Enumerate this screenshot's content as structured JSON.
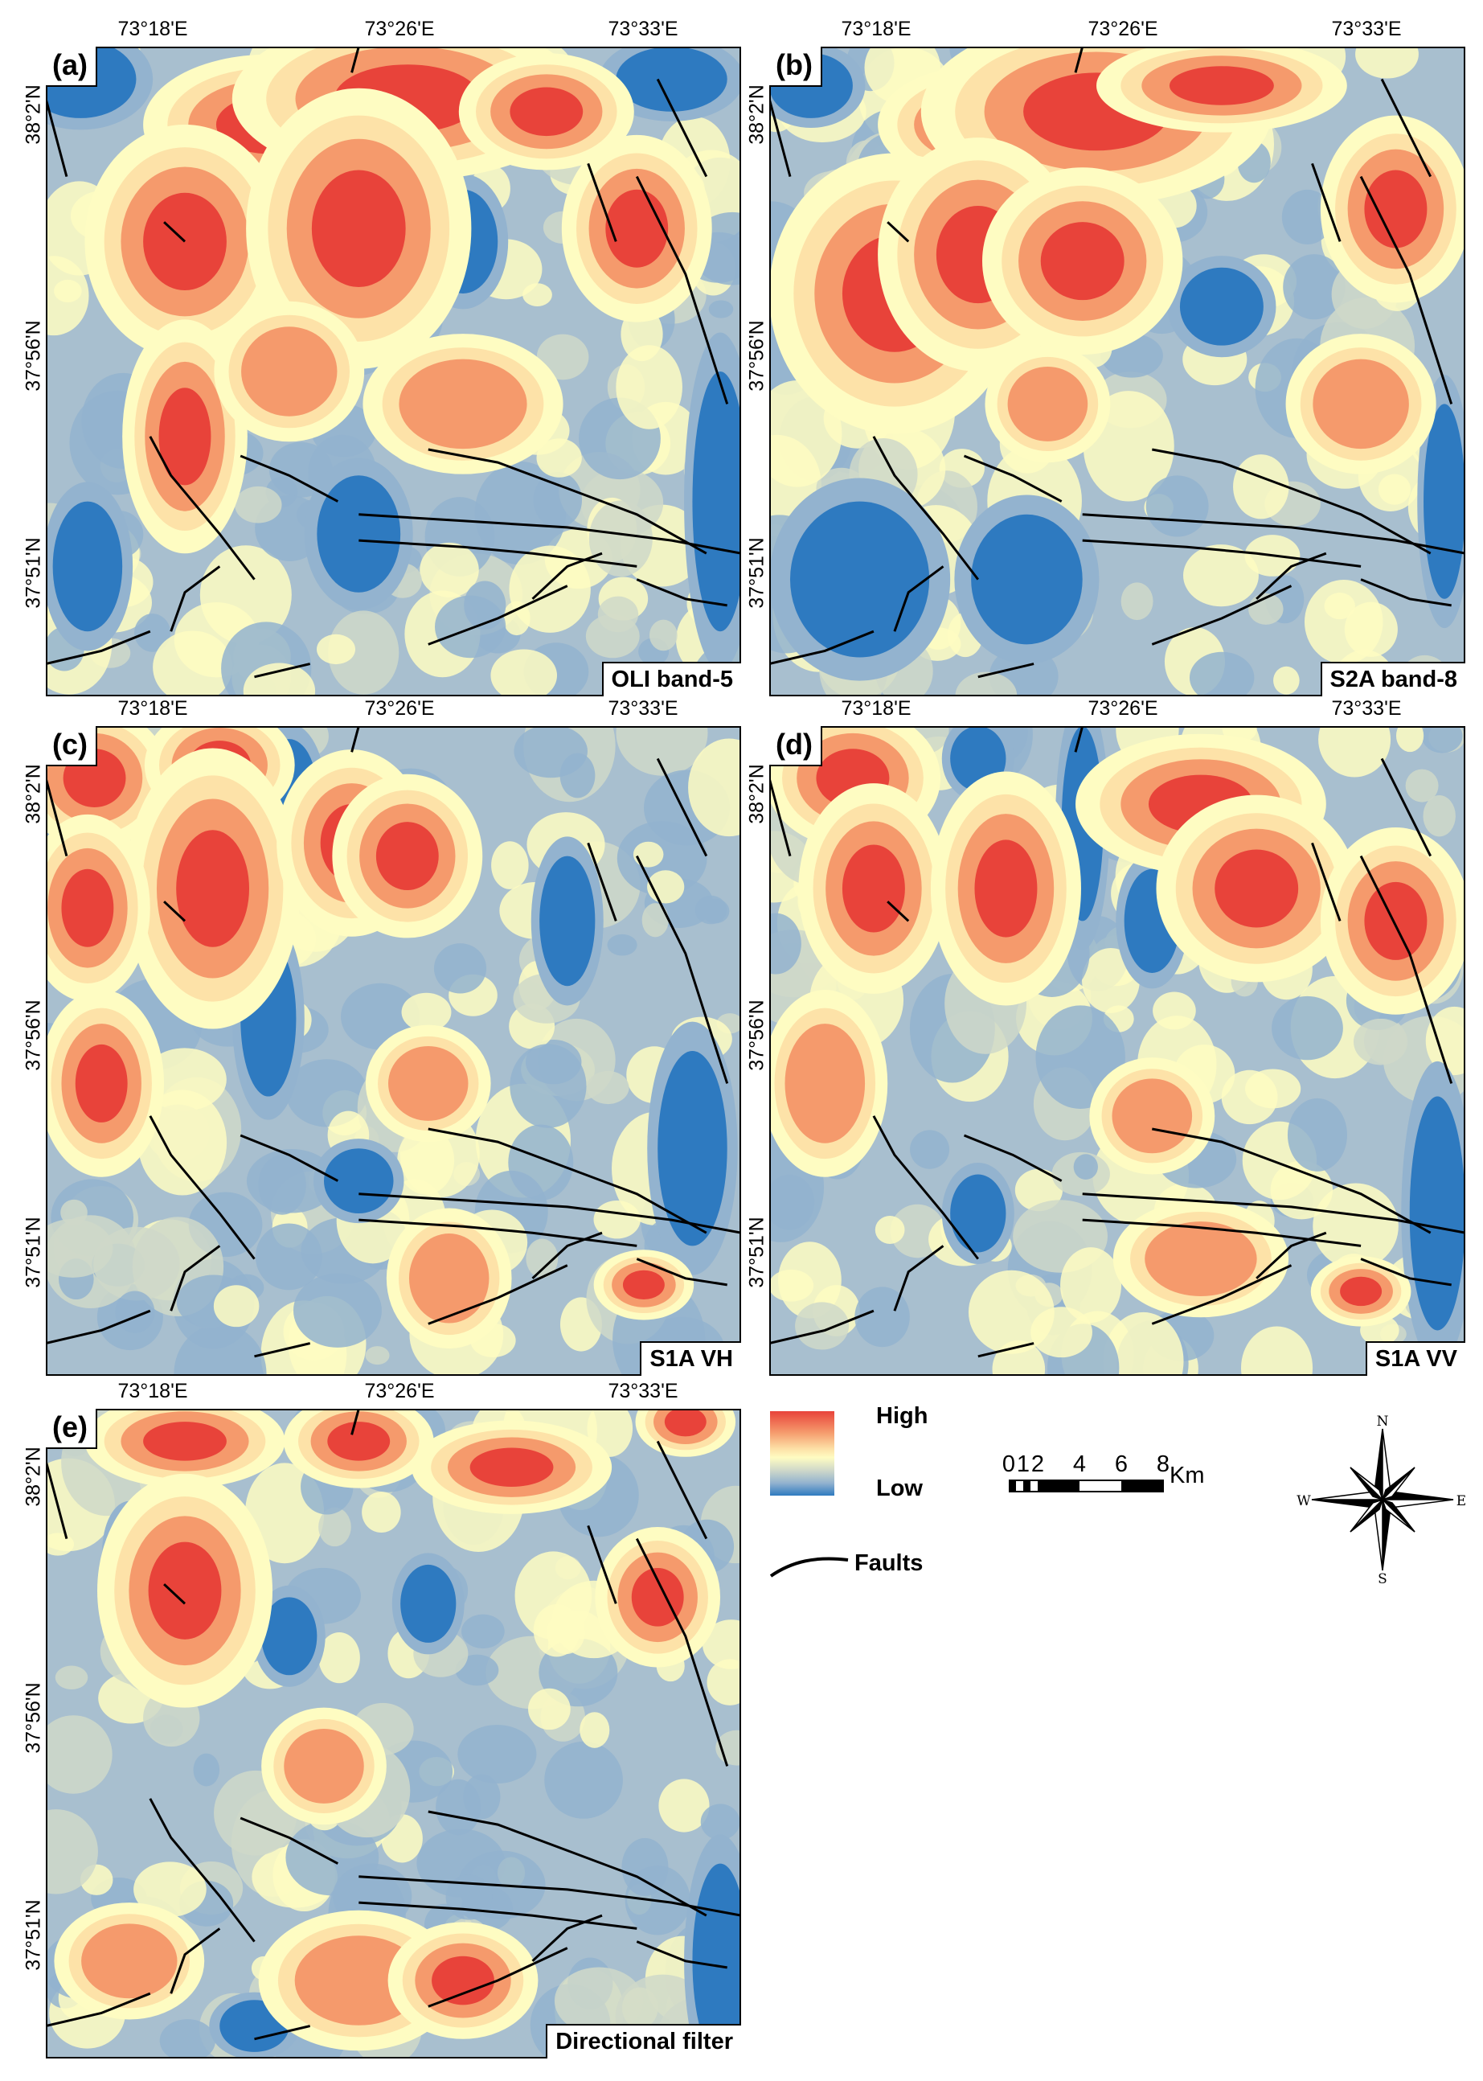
{
  "figure": {
    "x_ticks": [
      "73°18'E",
      "73°26'E",
      "73°33'E"
    ],
    "y_ticks": [
      "38°2'N",
      "37°56'N",
      "37°51'N"
    ],
    "panels": [
      {
        "id": "a",
        "label": "(a)",
        "caption": "OLI band-5"
      },
      {
        "id": "b",
        "label": "(b)",
        "caption": "S2A band-8"
      },
      {
        "id": "c",
        "label": "(c)",
        "caption": "S1A VH"
      },
      {
        "id": "d",
        "label": "(d)",
        "caption": "S1A VV"
      },
      {
        "id": "e",
        "label": "(e)",
        "caption": "Directional filter"
      }
    ]
  },
  "legend": {
    "high_label": "High",
    "low_label": "Low",
    "faults_label": "Faults",
    "ramp_colors": [
      "#e8433a",
      "#f59a6c",
      "#fde2a8",
      "#fefcc2",
      "#cfd8c9",
      "#93b3cf",
      "#2e7ac0"
    ]
  },
  "scale_bar": {
    "ticks": [
      "0",
      "1",
      "2",
      "4",
      "6",
      "8"
    ],
    "unit": "Km"
  },
  "compass": {
    "n": "N",
    "s": "S",
    "e": "E",
    "w": "W"
  }
}
